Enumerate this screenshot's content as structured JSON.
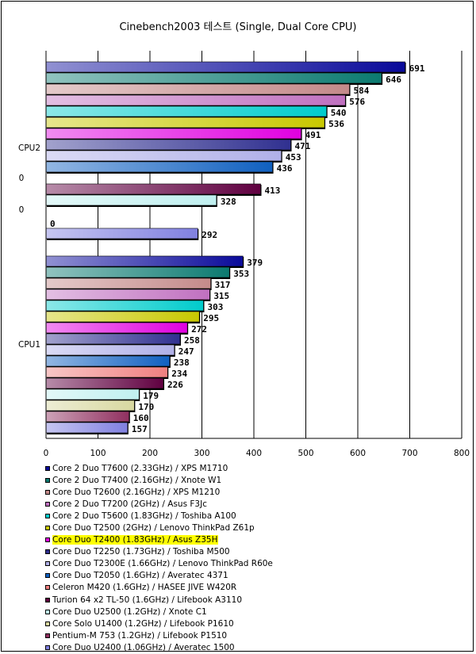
{
  "chart_data": {
    "type": "bar",
    "orientation": "horizontal",
    "title": "Cinebench2003 테스트 (Single, Dual Core CPU)",
    "xlim": [
      0,
      800
    ],
    "xticks": [
      0,
      100,
      200,
      300,
      400,
      500,
      600,
      700,
      800
    ],
    "grid": true,
    "legend_position": "bottom",
    "category_labels": [
      "CPU2",
      "0",
      "0",
      "CPU1"
    ],
    "series": [
      {
        "name": "Core 2 Duo T7600 (2.33GHz) / XPS M1710",
        "color": "#0a0a9a",
        "values": {
          "CPU2": 691,
          "CPU1": 379
        }
      },
      {
        "name": "Core 2 Duo T7400 (2.16GHz) / Xnote W1",
        "color": "#0b7a70",
        "values": {
          "CPU2": 646,
          "CPU1": 353
        }
      },
      {
        "name": "Core Duo T2600 (2.16GHz) / XPS M1210",
        "color": "#c48a8a",
        "values": {
          "CPU2": 584,
          "CPU1": 317
        }
      },
      {
        "name": "Core 2 Duo T7200 (2GHz) / Asus F3Jc",
        "color": "#c070c0",
        "values": {
          "CPU2": 576,
          "CPU1": 315
        }
      },
      {
        "name": "Core 2 Duo T5600 (1.83GHz) / Toshiba A100",
        "color": "#00cccc",
        "values": {
          "CPU2": 540,
          "CPU1": 303
        }
      },
      {
        "name": "Core Duo T2500 (2GHz) / Lenovo ThinkPad Z61p",
        "color": "#c8c800",
        "values": {
          "CPU2": 536,
          "CPU1": 295
        }
      },
      {
        "name": "Core Duo T2400 (1.83GHz) / Asus Z35H",
        "color": "#e000e0",
        "highlight": true,
        "values": {
          "CPU2": 491,
          "CPU1": 272
        }
      },
      {
        "name": "Core Duo T2250 (1.73GHz) / Toshiba M500",
        "color": "#303090",
        "values": {
          "CPU2": 471,
          "CPU1": 258
        }
      },
      {
        "name": "Core Duo T2300E (1.66GHz) / Lenovo ThinkPad R60e",
        "color": "#b0b0e8",
        "values": {
          "CPU2": 453,
          "CPU1": 247
        }
      },
      {
        "name": "Core Duo T2050 (1.6GHz) / Averatec 4371",
        "color": "#1060c0",
        "values": {
          "CPU2": 436,
          "CPU1": 238
        }
      },
      {
        "name": "Celeron M420 (1.6GHz) / HASEE JIVE W420R",
        "color": "#f08080",
        "values": {
          "CPU1": 234
        }
      },
      {
        "name": "Turion 64 x2 TL-50 (1.6GHz) / Lifebook A3110",
        "color": "#600040",
        "values": {
          "CPU2": 413,
          "CPU1": 226
        }
      },
      {
        "name": "Core Duo U2500 (1.2GHz) / Xnote C1",
        "color": "#c0f0f0",
        "values": {
          "CPU2": 328,
          "CPU1": 179
        }
      },
      {
        "name": "Core Solo U1400 (1.2GHz) / Lifebook P1610",
        "color": "#d8d8a0",
        "values": {
          "CPU2": 0,
          "CPU1": 170
        }
      },
      {
        "name": "Pentium-M 753 (1.2GHz) / Lifebook P1510",
        "color": "#903060",
        "values": {
          "CPU1": 160
        }
      },
      {
        "name": "Core Duo U2400 (1.06GHz) / Averatec 1500",
        "color": "#8080e0",
        "values": {
          "CPU2": 292,
          "CPU1": 157
        }
      }
    ]
  }
}
